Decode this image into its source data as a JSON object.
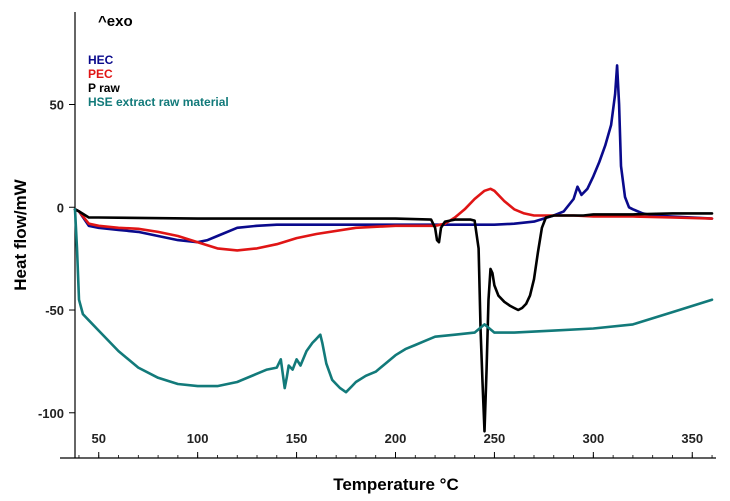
{
  "chart_data": {
    "type": "line",
    "title": "",
    "exo_label": "^exo",
    "xlabel": "Temperature °C",
    "ylabel": "Heat flow/mW",
    "xlim": [
      38,
      362
    ],
    "ylim": [
      -122,
      95
    ],
    "x_ticks": [
      50,
      100,
      150,
      200,
      250,
      300,
      350
    ],
    "y_ticks": [
      50,
      0,
      -50,
      -100
    ],
    "grid": false,
    "legend_position": "top-left",
    "series": [
      {
        "name": "HEC",
        "color": "#0a0a8c",
        "x": [
          38,
          40,
          45,
          50,
          60,
          70,
          80,
          90,
          100,
          105,
          110,
          120,
          130,
          140,
          150,
          160,
          180,
          200,
          220,
          230,
          240,
          250,
          260,
          270,
          280,
          285,
          290,
          292,
          294,
          297,
          300,
          303,
          306,
          309,
          311,
          312,
          313,
          314,
          316,
          318,
          320,
          325,
          330,
          340,
          350,
          360
        ],
        "y": [
          -1,
          -2,
          -9,
          -10,
          -11,
          -12,
          -14,
          -16,
          -17,
          -16,
          -14,
          -10,
          -9,
          -8.5,
          -8.5,
          -8.5,
          -8.5,
          -8.5,
          -8.5,
          -8.5,
          -8.5,
          -8.5,
          -8,
          -7,
          -4,
          -2,
          4,
          10,
          6,
          9,
          15,
          22,
          30,
          40,
          55,
          69,
          50,
          20,
          5,
          0,
          -1,
          -3,
          -4,
          -4.5,
          -5,
          -5.5
        ]
      },
      {
        "name": "PEC",
        "color": "#e01515",
        "x": [
          38,
          40,
          45,
          50,
          60,
          70,
          80,
          90,
          100,
          110,
          120,
          130,
          140,
          150,
          160,
          180,
          200,
          220,
          225,
          230,
          235,
          240,
          245,
          248,
          250,
          255,
          260,
          265,
          270,
          280,
          290,
          300,
          320,
          340,
          360
        ],
        "y": [
          -1,
          -2,
          -8,
          -9,
          -10,
          -10.5,
          -12,
          -14,
          -17,
          -20,
          -21,
          -20,
          -18,
          -15,
          -13,
          -10,
          -9,
          -9,
          -8,
          -5,
          -1,
          4,
          8,
          9,
          8,
          3,
          -1,
          -3,
          -4,
          -4,
          -4,
          -4.5,
          -4.5,
          -5,
          -5.5
        ]
      },
      {
        "name": "P raw",
        "color": "#000000",
        "x": [
          38,
          40,
          45,
          50,
          100,
          150,
          200,
          218,
          220,
          221,
          222,
          223,
          225,
          230,
          238,
          240,
          242,
          243,
          244,
          245,
          246,
          247,
          248,
          249,
          250,
          252,
          255,
          258,
          260,
          262,
          264,
          266,
          268,
          270,
          272,
          274,
          276,
          280,
          290,
          295,
          300,
          310,
          320,
          340,
          360
        ],
        "y": [
          -1,
          -2,
          -5,
          -5,
          -5.5,
          -5.5,
          -5.5,
          -6,
          -10,
          -16,
          -17,
          -10,
          -7,
          -6,
          -6,
          -6.5,
          -20,
          -60,
          -85,
          -109,
          -80,
          -45,
          -30,
          -32,
          -38,
          -43,
          -46,
          -48,
          -49,
          -50,
          -49,
          -47,
          -43,
          -35,
          -22,
          -10,
          -5,
          -4,
          -4,
          -4,
          -3.5,
          -3.5,
          -3.5,
          -3,
          -3
        ]
      },
      {
        "name": "HSE extract  raw  material",
        "color": "#127a7a",
        "x": [
          38,
          39,
          40,
          42,
          45,
          50,
          60,
          70,
          80,
          90,
          100,
          110,
          120,
          130,
          135,
          140,
          142,
          144,
          145,
          146,
          148,
          150,
          152,
          155,
          158,
          160,
          161,
          162,
          163,
          165,
          168,
          170,
          172,
          175,
          178,
          180,
          185,
          190,
          195,
          200,
          205,
          210,
          215,
          220,
          230,
          240,
          245,
          250,
          260,
          280,
          300,
          320,
          340,
          360
        ],
        "y": [
          -1,
          -20,
          -45,
          -52,
          -55,
          -60,
          -70,
          -78,
          -83,
          -86,
          -87,
          -87,
          -85,
          -81,
          -79,
          -78,
          -74,
          -88,
          -83,
          -77,
          -79,
          -74,
          -77,
          -70,
          -66,
          -64,
          -63,
          -62,
          -66,
          -76,
          -84,
          -86,
          -88,
          -90,
          -87,
          -85,
          -82,
          -80,
          -76,
          -72,
          -69,
          -67,
          -65,
          -63,
          -62,
          -61,
          -57,
          -61,
          -61,
          -60,
          -59,
          -57,
          -51,
          -45
        ]
      }
    ]
  }
}
